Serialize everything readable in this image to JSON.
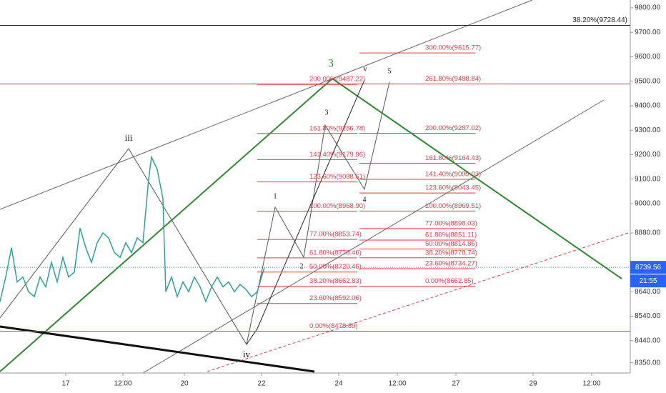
{
  "chart_data": {
    "type": "line",
    "ylim": [
      8308,
      9832
    ],
    "xlim": [
      0,
      441
    ],
    "yticks": [
      {
        "value": 9800,
        "label": "9800.00"
      },
      {
        "value": 9700,
        "label": "9700.00"
      },
      {
        "value": 9600,
        "label": "9600.00"
      },
      {
        "value": 9500,
        "label": "9500.00"
      },
      {
        "value": 9400,
        "label": "9400.00"
      },
      {
        "value": 9300,
        "label": "9300.00"
      },
      {
        "value": 9200,
        "label": "9200.00"
      },
      {
        "value": 9100,
        "label": "9100.00"
      },
      {
        "value": 9000,
        "label": "9000.00"
      },
      {
        "value": 8880,
        "label": "8880.00"
      },
      {
        "value": 8640,
        "label": "8640.00"
      },
      {
        "value": 8540,
        "label": "8540.00"
      },
      {
        "value": 8440,
        "label": "8440.00"
      },
      {
        "value": 8350,
        "label": "8350.00"
      }
    ],
    "xticks": [
      {
        "value": 46,
        "label": "17"
      },
      {
        "value": 86,
        "label": "12:00"
      },
      {
        "value": 129,
        "label": "20"
      },
      {
        "value": 183,
        "label": "22"
      },
      {
        "value": 237,
        "label": "24"
      },
      {
        "value": 278,
        "label": "12:00"
      },
      {
        "value": 319,
        "label": "27"
      },
      {
        "value": 373,
        "label": "29"
      },
      {
        "value": 414,
        "label": "12:00"
      }
    ],
    "series": [
      {
        "color": "#26a69a",
        "x": [
          0,
          4,
          8,
          12,
          16,
          20,
          24,
          28,
          32,
          36,
          40,
          44,
          48,
          52,
          56,
          60,
          64,
          68,
          72,
          76,
          80,
          84,
          88,
          92,
          96,
          100,
          104,
          106,
          110,
          114,
          116,
          120,
          124,
          128,
          132,
          136,
          140,
          144,
          148,
          152,
          156,
          160,
          164,
          168,
          172,
          176,
          180,
          185
        ],
        "values": [
          8600,
          8700,
          8820,
          8680,
          8700,
          8640,
          8620,
          8700,
          8660,
          8760,
          8680,
          8780,
          8700,
          8720,
          8900,
          8820,
          8760,
          8840,
          8880,
          8860,
          8800,
          8780,
          8840,
          8800,
          8860,
          8840,
          9100,
          9190,
          9140,
          9020,
          8640,
          8700,
          8620,
          8680,
          8640,
          8700,
          8660,
          8600,
          8660,
          8700,
          8660,
          8680,
          8640,
          8670,
          8650,
          8620,
          8640,
          8740
        ]
      }
    ],
    "last_price": {
      "label": "8739.56",
      "value": 8739.56
    },
    "countdown": "21:55",
    "fib_sets": [
      {
        "levels": [
          {
            "label": "0.00%(8478.89)",
            "price": 8478.89
          },
          {
            "label": "23.60%(8592.06)",
            "price": 8592.06
          },
          {
            "label": "38.20%(8662.83)",
            "price": 8662.83
          },
          {
            "label": "50.00%(8720.45)",
            "price": 8720.45
          },
          {
            "label": "61.80%(8778.46)",
            "price": 8778.46
          },
          {
            "label": "77.00%(8853.74)",
            "price": 8853.74
          },
          {
            "label": "100.00%(8968.90)",
            "price": 8968.9
          },
          {
            "label": "123.60%(9088.61)",
            "price": 9088.61
          },
          {
            "label": "141.40%(9179.96)",
            "price": 9179.96
          },
          {
            "label": "161.80%(9286.78)",
            "price": 9286.78
          },
          {
            "label": "200.00%(9487.22)",
            "price": 9487.22
          }
        ]
      },
      {
        "levels": [
          {
            "label": "0.00%(8662.85)",
            "price": 8662.85
          },
          {
            "label": "23.60%(8734.27)",
            "price": 8734.27
          },
          {
            "label": "38.20%(8778.74)",
            "price": 8778.74
          },
          {
            "label": "50.00%(8814.85)",
            "price": 8814.85
          },
          {
            "label": "61.80%(8851.11)",
            "price": 8851.11
          },
          {
            "label": "77.00%(8898.03)",
            "price": 8898.03
          },
          {
            "label": "100.00%(8969.51)",
            "price": 8969.51
          },
          {
            "label": "123.60%(9043.45)",
            "price": 9043.45
          },
          {
            "label": "141.40%(9099.03)",
            "price": 9099.03
          },
          {
            "label": "161.80%(9164.43)",
            "price": 9164.43
          },
          {
            "label": "200.00%(9287.02)",
            "price": 9287.02
          },
          {
            "label": "261.80%(9488.84)",
            "price": 9488.84
          },
          {
            "label": "300.00%(9615.77)",
            "price": 9615.77
          }
        ]
      },
      {
        "levels": [
          {
            "label": "38.20%(9728.44)",
            "price": 9728.44
          }
        ]
      }
    ],
    "wave_labels": [
      "iii",
      "3",
      "iv",
      "1",
      "2",
      "3",
      "4",
      "5",
      "v"
    ]
  }
}
